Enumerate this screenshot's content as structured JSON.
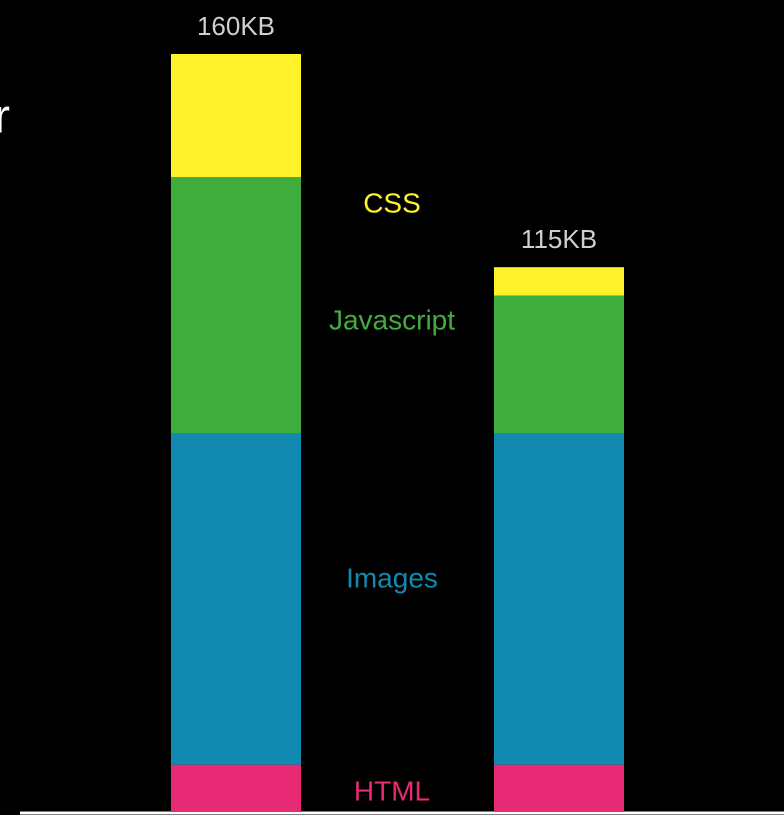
{
  "chart_data": {
    "type": "stacked_bar",
    "clipped_text": "r",
    "categories": [
      null,
      null
    ],
    "series": [
      {
        "name": "HTML",
        "color": "#e82a74",
        "values": [
          10,
          10
        ]
      },
      {
        "name": "Images",
        "color": "#1289b0",
        "values": [
          70,
          70
        ]
      },
      {
        "name": "Javascript",
        "color": "#41ad3e",
        "values": [
          54,
          29
        ]
      },
      {
        "name": "CSS",
        "color": "#fff22a",
        "values": [
          26,
          6
        ]
      }
    ],
    "totals": [
      160,
      115
    ],
    "total_labels": [
      "160KB",
      "115KB"
    ]
  }
}
